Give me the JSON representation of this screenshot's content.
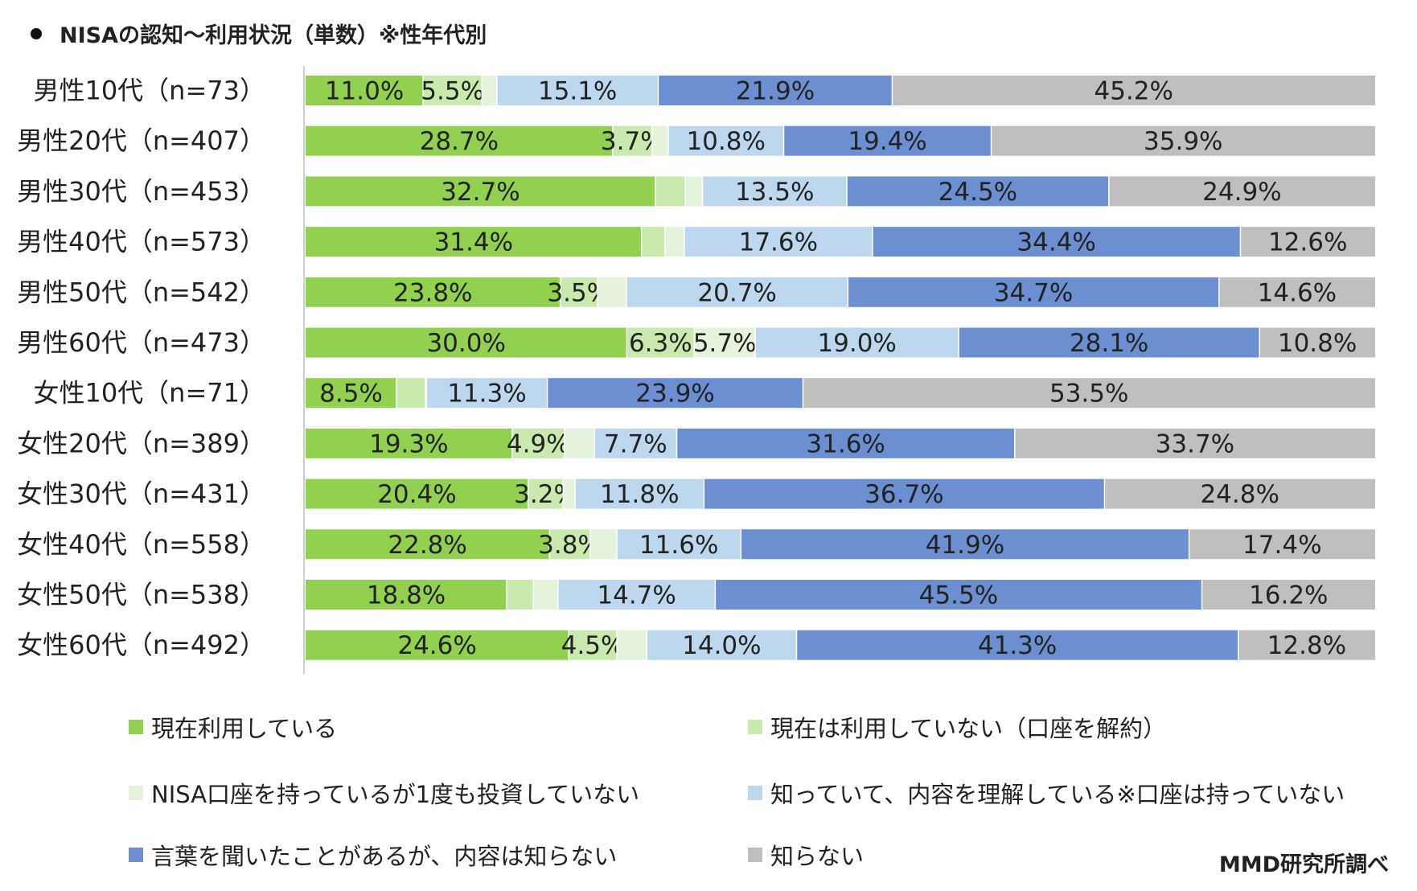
{
  "title": "NISAの認知～利用状況（単数）※性年代別",
  "source": "MMD研究所調べ",
  "colors": [
    "#92d050",
    "#c9e9ae",
    "#e5f3dc",
    "#bdd7ee",
    "#6b8fd1",
    "#bfbfbf"
  ],
  "chart_data": {
    "type": "bar",
    "orientation": "horizontal",
    "stacked": true,
    "percent_stacked": true,
    "title": "NISAの認知～利用状況（単数）※性年代別",
    "xlim": [
      0,
      100
    ],
    "legend_position": "bottom",
    "categories": [
      "男性10代（n=73）",
      "男性20代（n=407）",
      "男性30代（n=453）",
      "男性40代（n=573）",
      "男性50代（n=542）",
      "男性60代（n=473）",
      "女性10代（n=71）",
      "女性20代（n=389）",
      "女性30代（n=431）",
      "女性40代（n=558）",
      "女性50代（n=538）",
      "女性60代（n=492）"
    ],
    "series": [
      {
        "name": "現在利用している",
        "values": [
          11.0,
          28.7,
          32.7,
          31.4,
          23.8,
          30.0,
          8.5,
          19.3,
          20.4,
          22.8,
          18.8,
          24.6
        ]
      },
      {
        "name": "現在は利用していない（口座を解約）",
        "values": [
          5.5,
          3.7,
          2.8,
          2.2,
          3.5,
          6.3,
          2.7,
          4.9,
          3.2,
          3.8,
          2.5,
          4.5
        ]
      },
      {
        "name": "NISA口座を持っているが1度も投資していない",
        "values": [
          1.4,
          1.5,
          1.6,
          1.8,
          2.7,
          5.7,
          0.1,
          2.8,
          1.1,
          2.5,
          2.3,
          2.8
        ]
      },
      {
        "name": "知っていて、内容を理解している※口座は持っていない",
        "values": [
          15.1,
          10.8,
          13.5,
          17.6,
          20.7,
          19.0,
          11.3,
          7.7,
          11.8,
          11.6,
          14.7,
          14.0
        ]
      },
      {
        "name": "言葉を聞いたことがあるが、内容は知らない",
        "values": [
          21.9,
          19.4,
          24.5,
          34.4,
          34.7,
          28.1,
          23.9,
          31.6,
          36.7,
          41.9,
          45.5,
          41.3
        ]
      },
      {
        "name": "知らない",
        "values": [
          45.2,
          35.9,
          24.9,
          12.6,
          14.6,
          10.8,
          53.5,
          33.7,
          24.8,
          17.4,
          16.2,
          12.8
        ]
      }
    ],
    "value_labels": [
      [
        "11.0%",
        "5.5%",
        "",
        "15.1%",
        "21.9%",
        "45.2%"
      ],
      [
        "28.7%",
        "3.7%",
        "",
        "10.8%",
        "19.4%",
        "35.9%"
      ],
      [
        "32.7%",
        "",
        "",
        "13.5%",
        "24.5%",
        "24.9%"
      ],
      [
        "31.4%",
        "",
        "",
        "17.6%",
        "34.4%",
        "12.6%"
      ],
      [
        "23.8%",
        "3.5%",
        "",
        "20.7%",
        "34.7%",
        "14.6%"
      ],
      [
        "30.0%",
        "6.3%",
        "5.7%",
        "19.0%",
        "28.1%",
        "10.8%"
      ],
      [
        "8.5%",
        "",
        "",
        "11.3%",
        "23.9%",
        "53.5%"
      ],
      [
        "19.3%",
        "4.9%",
        "",
        "7.7%",
        "31.6%",
        "33.7%"
      ],
      [
        "20.4%",
        "3.2%",
        "",
        "11.8%",
        "36.7%",
        "24.8%"
      ],
      [
        "22.8%",
        "3.8%",
        "",
        "11.6%",
        "41.9%",
        "17.4%"
      ],
      [
        "18.8%",
        "",
        "",
        "14.7%",
        "45.5%",
        "16.2%"
      ],
      [
        "24.6%",
        "4.5%",
        "",
        "14.0%",
        "41.3%",
        "12.8%"
      ]
    ]
  }
}
